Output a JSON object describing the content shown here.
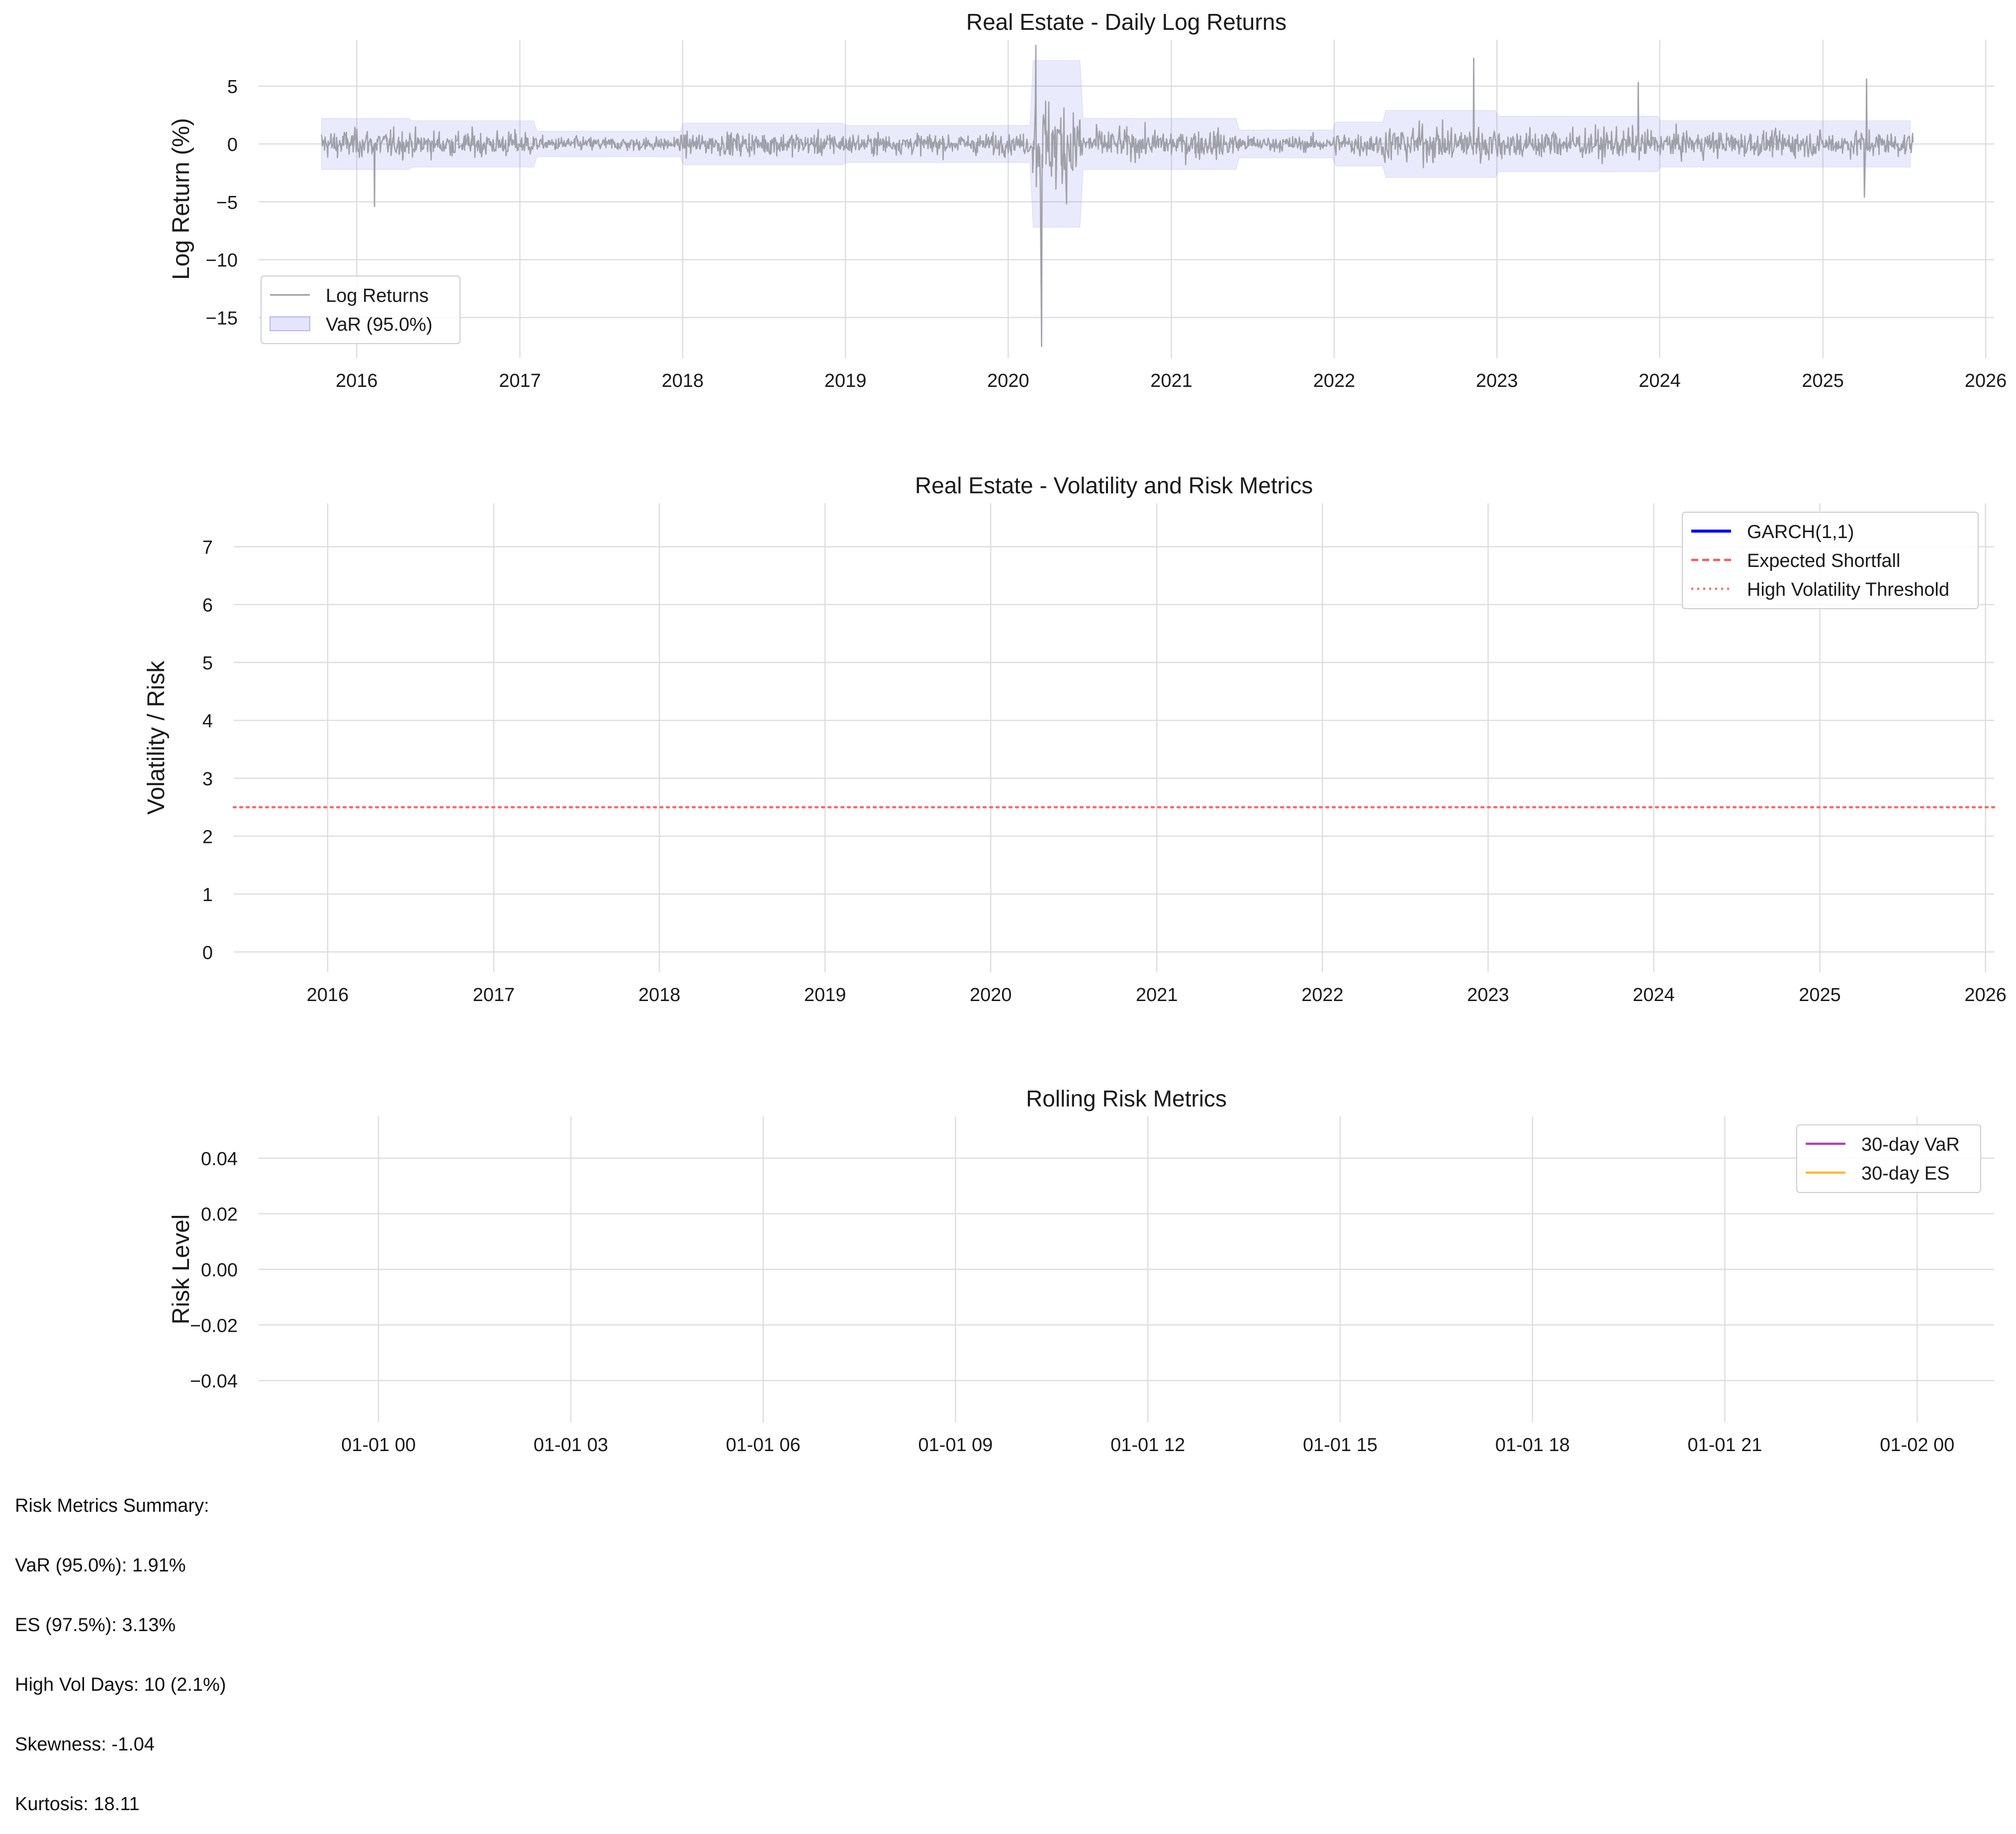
{
  "chart_data": [
    {
      "type": "line",
      "title": "Real Estate - Daily Log Returns",
      "xlabel": "",
      "ylabel": "Log Return (%)",
      "x_range": [
        "2015-05-26",
        "2026-01-20"
      ],
      "ylim": [
        -18.5,
        9.0
      ],
      "x_ticks": [
        "2016",
        "2017",
        "2018",
        "2019",
        "2020",
        "2021",
        "2022",
        "2023",
        "2024",
        "2025",
        "2026"
      ],
      "y_ticks": [
        5,
        0,
        -5,
        -10,
        -15
      ],
      "grid": true,
      "legend": "lower-left",
      "series": [
        {
          "name": "Log Returns",
          "color": "#a0a0a8",
          "x_start": "2015-10-14",
          "x_end": "2025-07-22",
          "notable_points": [
            {
              "x": "2016-02-10",
              "y": -5.4
            },
            {
              "x": "2020-03-03",
              "y": 8.5
            },
            {
              "x": "2020-03-16",
              "y": -17.5
            },
            {
              "x": "2022-11-10",
              "y": 7.4
            },
            {
              "x": "2023-11-14",
              "y": 5.3
            },
            {
              "x": "2025-04-09",
              "y": 5.6
            },
            {
              "x": "2025-04-04",
              "y": -4.6
            }
          ]
        },
        {
          "name": "VaR (95.0%)",
          "color": "#7a7af0",
          "type": "band"
        }
      ],
      "var_band_periods": [
        {
          "start": "2015-10-14",
          "end": "2016-05-01",
          "half_width": 2.2
        },
        {
          "start": "2016-05-01",
          "end": "2017-02-01",
          "half_width": 2.0
        },
        {
          "start": "2017-02-01",
          "end": "2018-01-01",
          "half_width": 1.1
        },
        {
          "start": "2018-01-01",
          "end": "2019-01-01",
          "half_width": 1.8
        },
        {
          "start": "2019-01-01",
          "end": "2020-02-20",
          "half_width": 1.6
        },
        {
          "start": "2020-02-20",
          "end": "2020-06-15",
          "half_width": 7.2
        },
        {
          "start": "2020-06-15",
          "end": "2021-06-01",
          "half_width": 2.2
        },
        {
          "start": "2021-06-01",
          "end": "2022-01-01",
          "half_width": 1.2
        },
        {
          "start": "2022-01-01",
          "end": "2022-04-20",
          "half_width": 1.9
        },
        {
          "start": "2022-04-20",
          "end": "2023-01-01",
          "half_width": 2.9
        },
        {
          "start": "2023-01-01",
          "end": "2024-01-01",
          "half_width": 2.4
        },
        {
          "start": "2024-01-01",
          "end": "2025-07-22",
          "half_width": 2.0
        }
      ]
    },
    {
      "type": "line",
      "title": "Real Estate - Volatility and Risk Metrics",
      "xlabel": "",
      "ylabel": "Volatility / Risk",
      "x_range": [
        "2015-06-08",
        "2026-01-20"
      ],
      "ylim": [
        -0.35,
        7.75
      ],
      "x_ticks": [
        "2016",
        "2017",
        "2018",
        "2019",
        "2020",
        "2021",
        "2022",
        "2023",
        "2024",
        "2025",
        "2026"
      ],
      "y_ticks": [
        7,
        6,
        5,
        4,
        3,
        2,
        1,
        0
      ],
      "grid": true,
      "legend": "top-right",
      "series": [
        {
          "name": "GARCH(1,1)",
          "color": "#0000ff",
          "style": "solid",
          "values": []
        },
        {
          "name": "Expected Shortfall",
          "color": "#ff5555",
          "style": "dashed",
          "values": []
        },
        {
          "name": "High Volatility Threshold",
          "color": "#ff6666",
          "style": "dotted",
          "y": 2.5
        }
      ]
    },
    {
      "type": "line",
      "title": "Rolling Risk Metrics",
      "xlabel": "",
      "ylabel": "Risk Level",
      "xlim_hours": [
        -1.87,
        25.2
      ],
      "ylim": [
        -0.055,
        0.055
      ],
      "x_ticks": [
        "01-01 00",
        "01-01 03",
        "01-01 06",
        "01-01 09",
        "01-01 12",
        "01-01 15",
        "01-01 18",
        "01-01 21",
        "01-02 00"
      ],
      "y_ticks": [
        "0.04",
        "0.02",
        "0.00",
        "−0.02",
        "−0.04"
      ],
      "grid": true,
      "legend": "top-right",
      "series": [
        {
          "name": "30-day VaR",
          "color": "#b040b0",
          "values": []
        },
        {
          "name": "30-day ES",
          "color": "#ffb830",
          "values": []
        }
      ]
    }
  ],
  "summary": {
    "heading": "Risk Metrics Summary:",
    "lines": [
      "VaR (95.0%): 1.91%",
      "ES (97.5%): 3.13%",
      "High Vol Days: 10 (2.1%)",
      "Skewness: -1.04",
      "Kurtosis: 18.11"
    ]
  }
}
